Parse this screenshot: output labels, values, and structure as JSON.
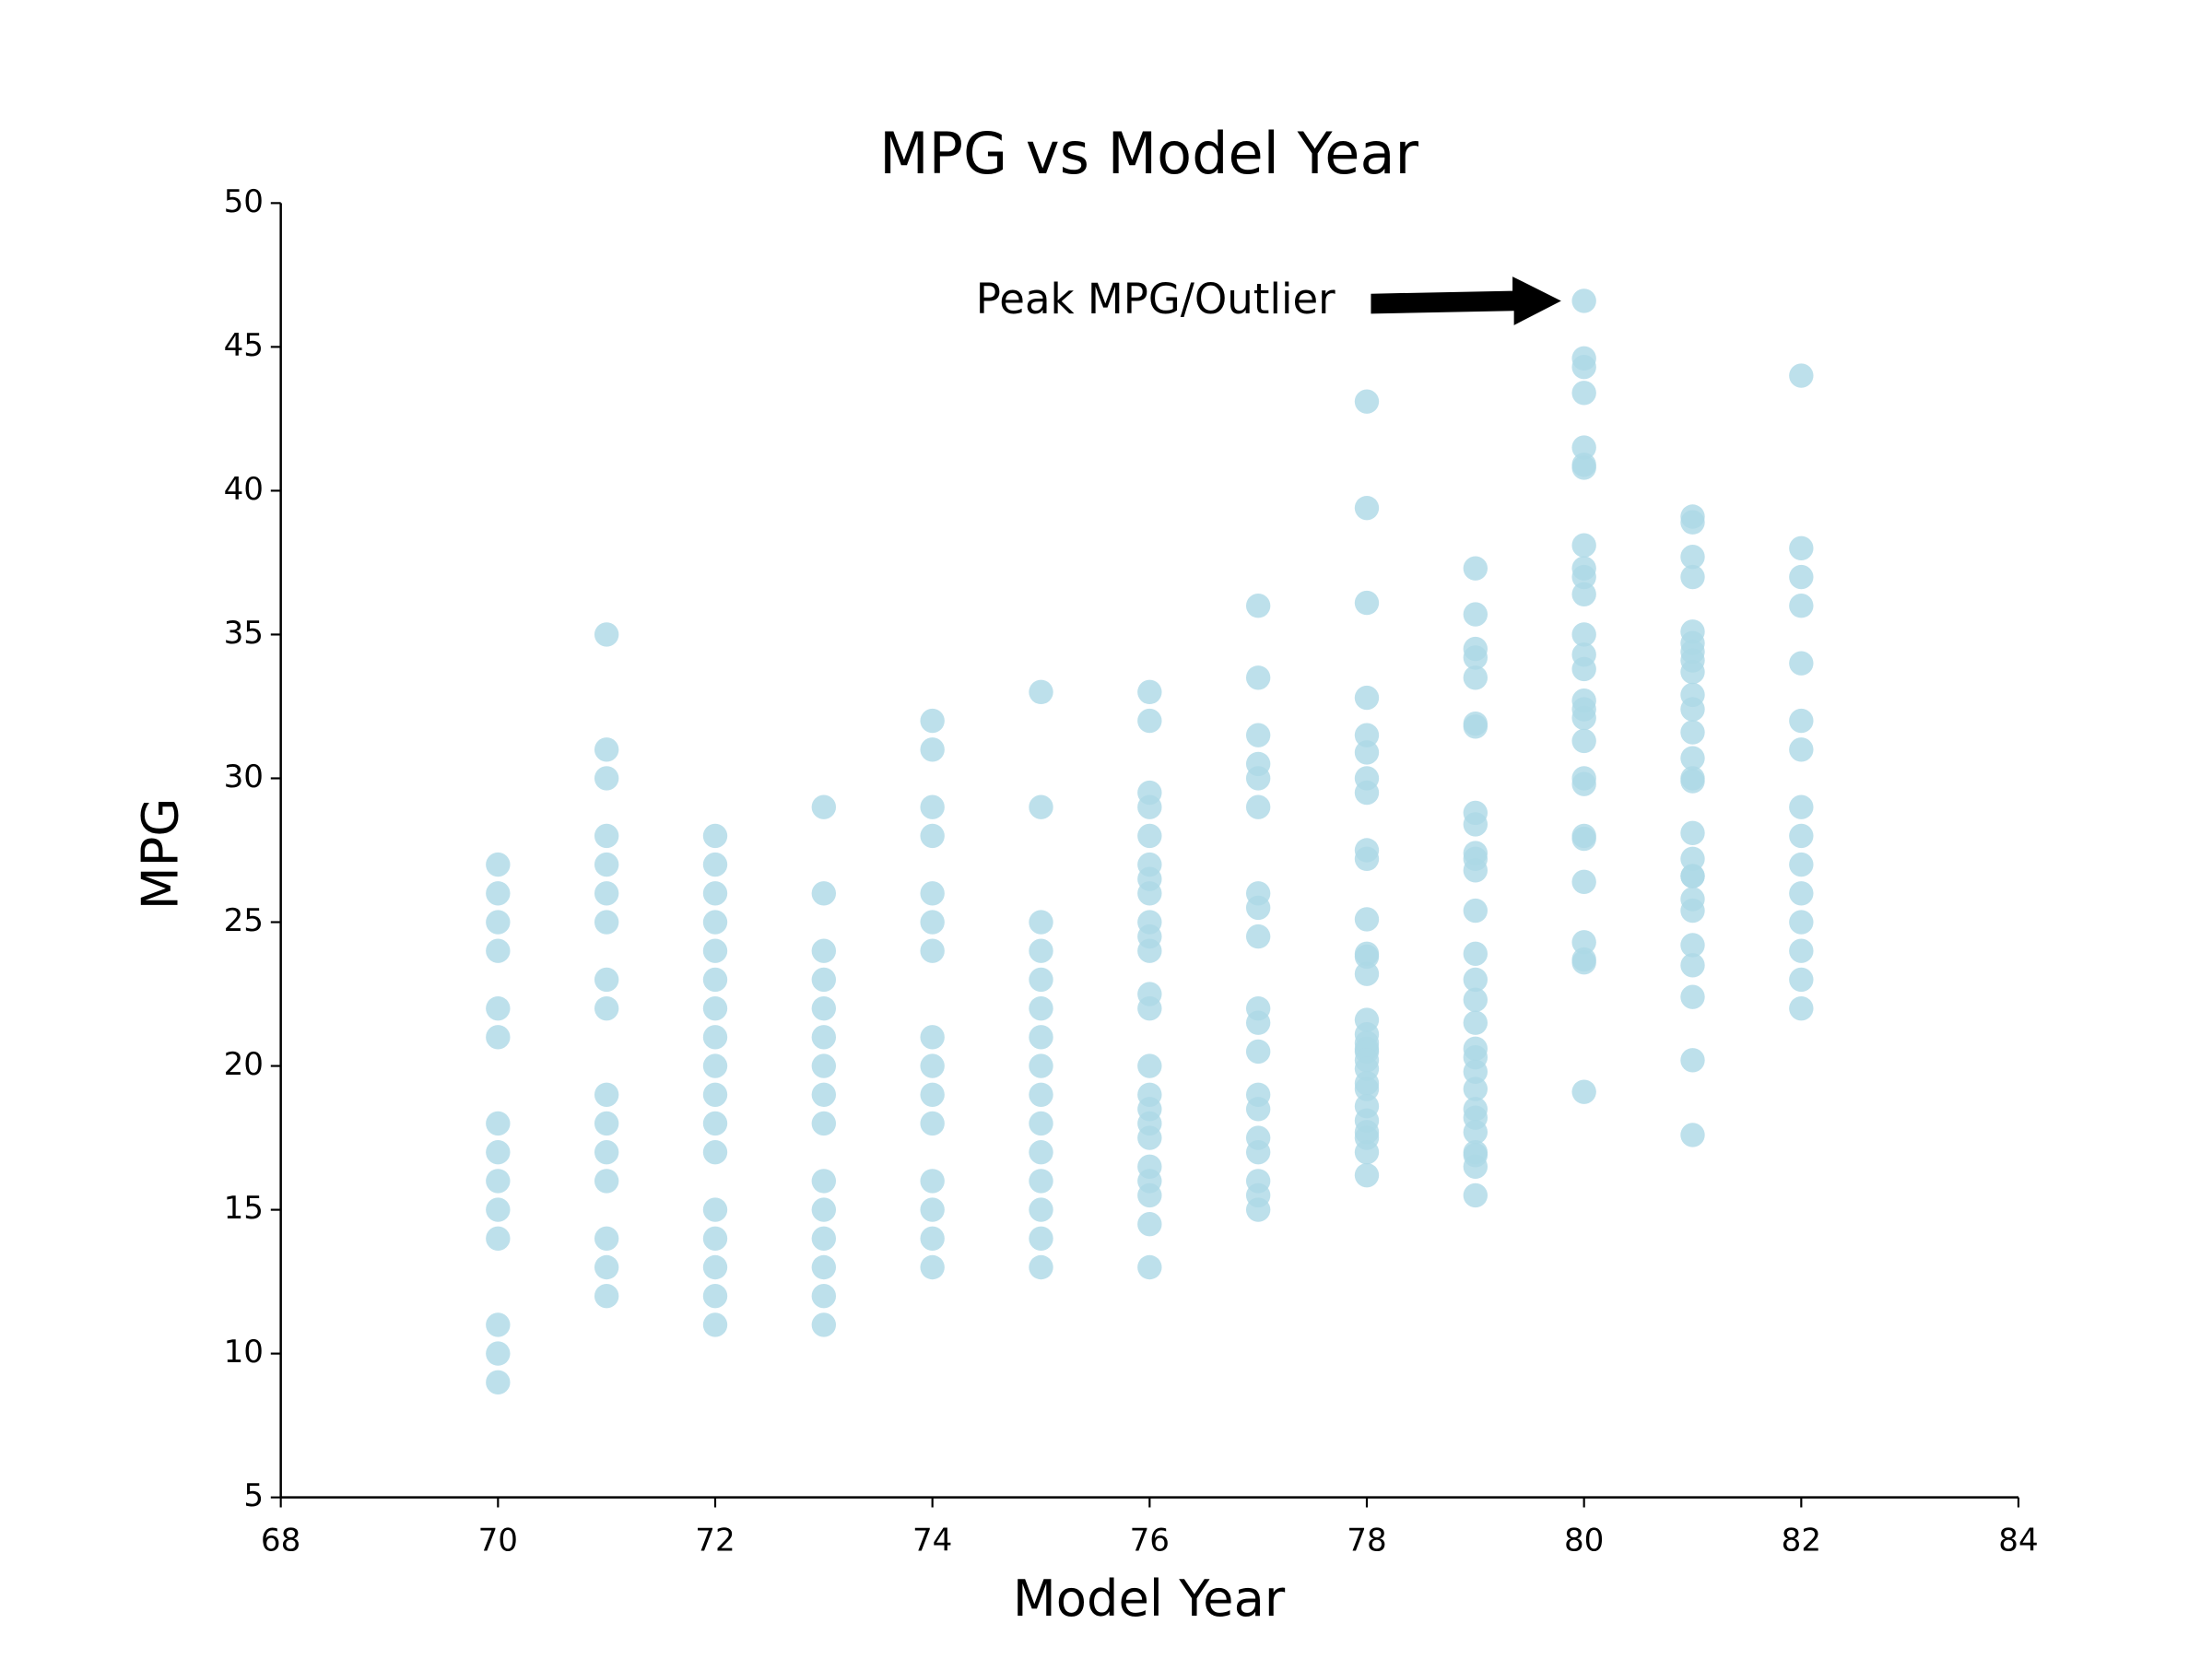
{
  "chart_data": {
    "type": "scatter",
    "title": "MPG vs Model Year",
    "xlabel": "Model Year",
    "ylabel": "MPG",
    "color": "#add8e6",
    "x": [
      70,
      70,
      70,
      70,
      70,
      70,
      70,
      70,
      70,
      70,
      70,
      70,
      70,
      70,
      71,
      71,
      71,
      71,
      71,
      71,
      71,
      71,
      71,
      71,
      71,
      71,
      71,
      71,
      71,
      71,
      72,
      72,
      72,
      72,
      72,
      72,
      72,
      72,
      72,
      72,
      72,
      72,
      72,
      72,
      72,
      72,
      72,
      73,
      73,
      73,
      73,
      73,
      73,
      73,
      73,
      73,
      73,
      73,
      73,
      73,
      73,
      73,
      74,
      74,
      74,
      74,
      74,
      74,
      74,
      74,
      74,
      74,
      74,
      74,
      74,
      74,
      74,
      75,
      75,
      75,
      75,
      75,
      75,
      75,
      75,
      75,
      75,
      75,
      75,
      75,
      75,
      75,
      76,
      76,
      76,
      76,
      76,
      76,
      76,
      76,
      76,
      76,
      76,
      76,
      76,
      76,
      76,
      76,
      76,
      76,
      76,
      76,
      76,
      76,
      76,
      77,
      77,
      77,
      77,
      77,
      77,
      77,
      77,
      77,
      77,
      77,
      77,
      77,
      77,
      77,
      77,
      77,
      77,
      77,
      78,
      78,
      78,
      78,
      78,
      78,
      78,
      78,
      78,
      78,
      78,
      78,
      78,
      78,
      78,
      78,
      78,
      78,
      78,
      78,
      78,
      78,
      78,
      78,
      78,
      78,
      78,
      78,
      78,
      79,
      79,
      79,
      79,
      79,
      79,
      79,
      79,
      79,
      79,
      79,
      79,
      79,
      79,
      79,
      79,
      79,
      79,
      79,
      79,
      79,
      79,
      79,
      79,
      79,
      79,
      79,
      79,
      80,
      80,
      80,
      80,
      80,
      80,
      80,
      80,
      80,
      80,
      80,
      80,
      80,
      80,
      80,
      80,
      80,
      80,
      80,
      80,
      80,
      80,
      80,
      80,
      80,
      80,
      80,
      81,
      81,
      81,
      81,
      81,
      81,
      81,
      81,
      81,
      81,
      81,
      81,
      81,
      81,
      81,
      81,
      81,
      81,
      81,
      81,
      81,
      81,
      81,
      81,
      81,
      81,
      82,
      82,
      82,
      82,
      82,
      82,
      82,
      82,
      82,
      82,
      82,
      82,
      82,
      82,
      82
    ],
    "values": [
      27,
      26,
      25,
      24,
      22,
      21,
      18,
      17,
      16,
      15,
      14,
      11,
      10,
      9,
      35,
      31,
      30,
      28,
      27,
      26,
      25,
      23,
      22,
      19,
      18,
      17,
      16,
      14,
      13,
      12,
      28,
      27,
      26,
      25,
      24,
      23,
      22,
      21,
      20,
      19,
      18,
      17,
      15,
      14,
      13,
      12,
      11,
      29,
      26,
      24,
      23,
      22,
      21,
      20,
      19,
      18,
      16,
      15,
      14,
      13,
      12,
      11,
      32,
      31,
      29,
      28,
      26,
      25,
      24,
      21,
      20,
      19,
      18,
      16,
      15,
      14,
      13,
      33,
      29,
      25,
      24,
      23,
      22,
      21,
      20,
      19,
      18,
      17,
      16,
      15,
      14,
      13,
      33,
      32,
      29.5,
      29,
      28,
      27,
      26.5,
      26,
      25,
      24.5,
      24,
      22.5,
      22,
      20,
      19,
      18.5,
      18,
      17.5,
      16.5,
      16,
      15.5,
      14.5,
      13,
      36,
      33.5,
      31.5,
      30.5,
      30,
      29,
      26,
      25.5,
      24.5,
      22,
      21.5,
      20.5,
      19,
      18.5,
      17.5,
      17,
      16,
      15.5,
      15,
      43.1,
      39.4,
      36.1,
      32.8,
      31.5,
      30.9,
      30,
      29.5,
      27.5,
      27.2,
      25.1,
      23.9,
      23.8,
      23.2,
      21.6,
      21.1,
      20.8,
      20.6,
      20.5,
      20.2,
      19.9,
      19.4,
      19.2,
      18.6,
      18.1,
      17.7,
      17.5,
      17,
      16.2,
      37.3,
      35.7,
      34.5,
      34.2,
      33.5,
      31.9,
      31.8,
      28.8,
      28.4,
      27.4,
      27.2,
      26.8,
      25.4,
      23.9,
      23,
      22.3,
      21.5,
      20.6,
      20.3,
      19.8,
      19.2,
      18.5,
      18.2,
      17.7,
      17,
      16.9,
      16.5,
      15.5,
      46.6,
      44.6,
      44.3,
      43.4,
      41.5,
      40.9,
      40.8,
      38.1,
      37.3,
      37,
      36.4,
      35,
      34.3,
      33.8,
      32.7,
      32.4,
      32.1,
      31.3,
      30,
      29.8,
      28,
      27.9,
      26.4,
      24.3,
      23.7,
      23.6,
      19.1,
      39.1,
      38.9,
      37.7,
      37,
      35.1,
      34.7,
      34.4,
      34.1,
      33.7,
      32.9,
      32.4,
      31.6,
      30.7,
      30,
      29.9,
      28.1,
      27.2,
      26.6,
      26.6,
      25.8,
      25.4,
      24.2,
      23.5,
      22.4,
      20.2,
      17.6,
      44,
      38,
      37,
      36,
      34,
      32,
      31,
      29,
      28,
      27,
      26,
      25,
      24,
      23,
      22
    ],
    "xlim": [
      68,
      84
    ],
    "xticks": [
      68,
      70,
      72,
      74,
      76,
      78,
      80,
      82,
      84
    ],
    "ylim": [
      5,
      50
    ],
    "yticks": [
      5,
      10,
      15,
      20,
      25,
      30,
      35,
      40,
      45,
      50
    ],
    "annotation": {
      "text": "Peak MPG/Outlier",
      "x": 80,
      "y": 46.6
    }
  }
}
